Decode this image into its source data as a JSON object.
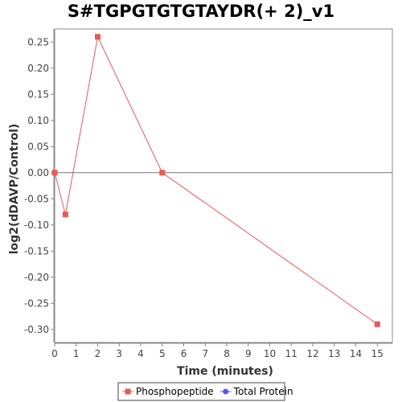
{
  "chart_data": {
    "type": "line",
    "title": "S#TGPGTGTGTAYDR(+ 2)_v1",
    "xlabel": "Time (minutes)",
    "ylabel": "log2(dDAVP/Control)",
    "xlim": [
      0,
      15.7
    ],
    "ylim": [
      -0.325,
      0.275
    ],
    "xticks": [
      "0",
      "1",
      "2",
      "3",
      "4",
      "5",
      "6",
      "7",
      "8",
      "9",
      "10",
      "11",
      "12",
      "13",
      "14",
      "15"
    ],
    "yticks": [
      "0.25",
      "0.20",
      "0.15",
      "0.10",
      "0.05",
      "0.00",
      "-0.05",
      "-0.10",
      "-0.15",
      "-0.20",
      "-0.25",
      "-0.30"
    ],
    "series": [
      {
        "name": "Phosphopeptide",
        "color": "#e8585a",
        "marker": "square",
        "x": [
          0,
          0.5,
          2,
          5,
          15
        ],
        "y": [
          0.0,
          -0.08,
          0.26,
          0.0,
          -0.29
        ]
      },
      {
        "name": "Total Protein",
        "color": "#5a5ae8",
        "marker": "circle",
        "x": [],
        "y": []
      }
    ],
    "zero_line": true,
    "grid": false,
    "legend_position": "bottom-center"
  }
}
